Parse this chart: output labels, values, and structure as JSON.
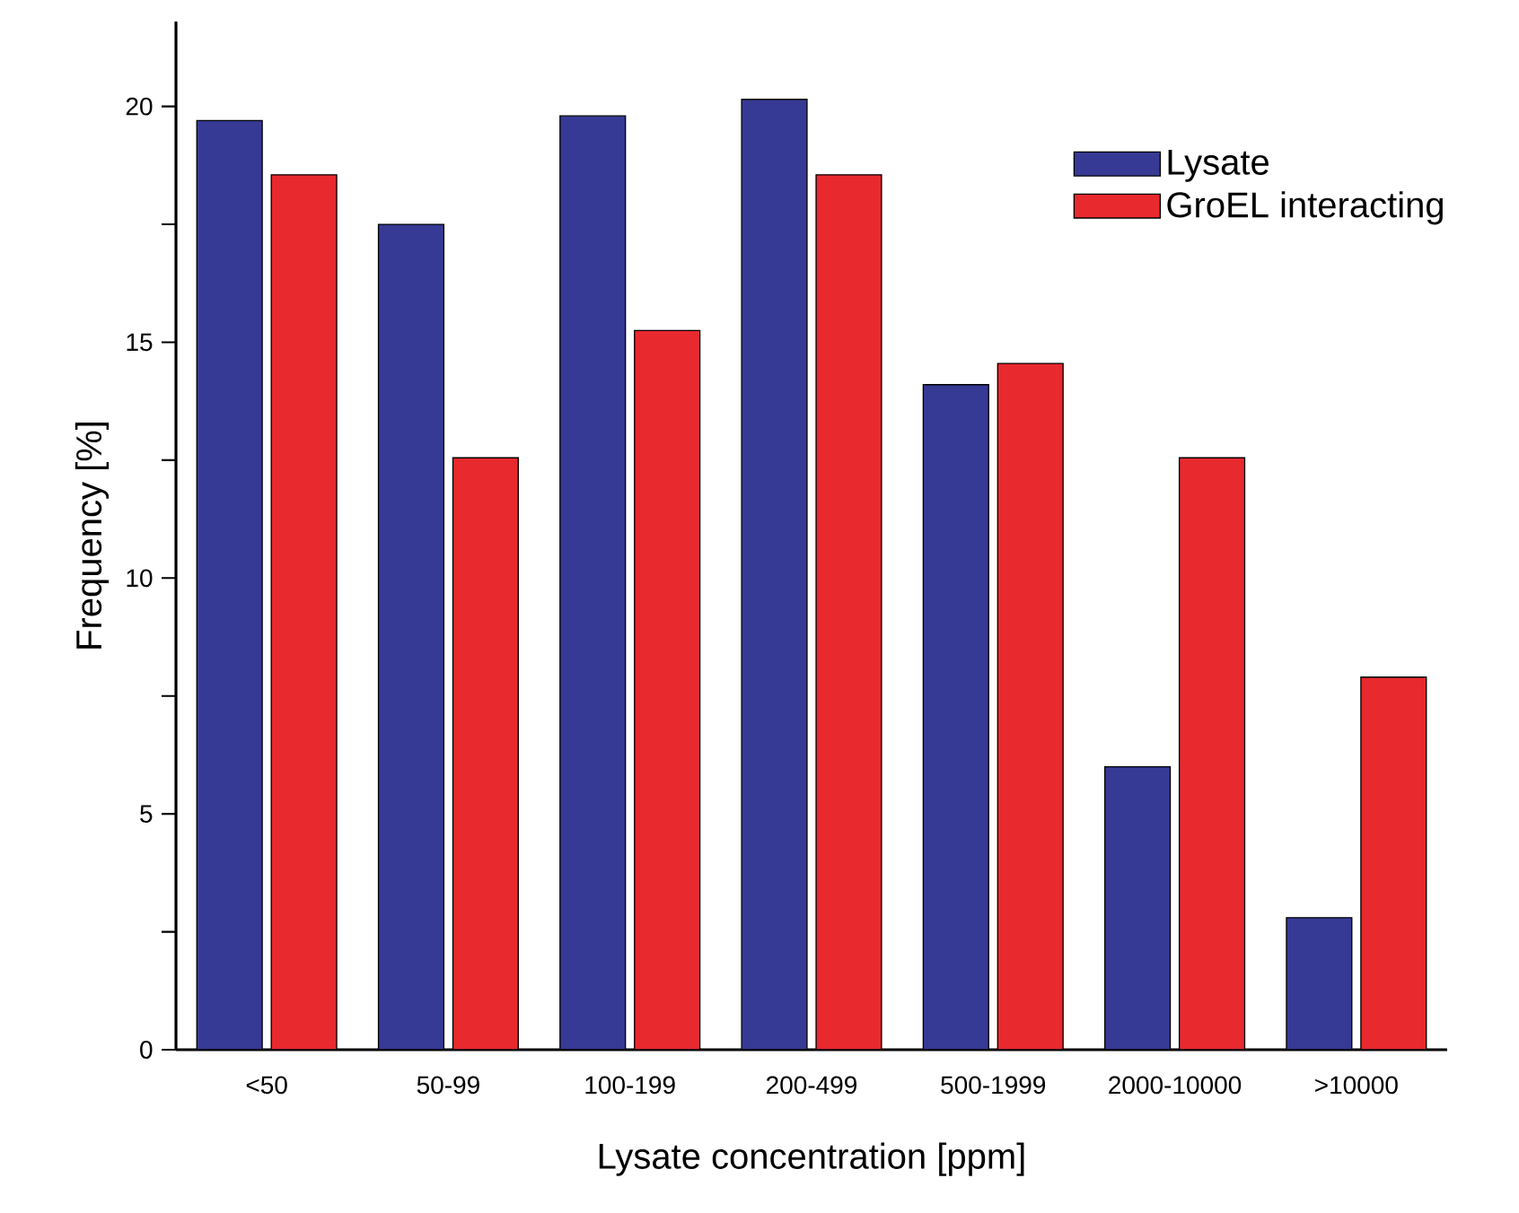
{
  "chart_data": {
    "type": "bar",
    "xlabel": "Lysate concentration [ppm]",
    "ylabel": "Frequency [%]",
    "categories": [
      "<50",
      "50-99",
      "100-199",
      "200-499",
      "500-1999",
      "2000-10000",
      ">10000"
    ],
    "series": [
      {
        "name": "Lysate",
        "color": "#363a94",
        "values": [
          19.7,
          17.5,
          19.8,
          20.15,
          14.1,
          6.0,
          2.8
        ]
      },
      {
        "name": "GroEL interacting",
        "color": "#e8292e",
        "values": [
          18.55,
          12.55,
          15.25,
          18.55,
          14.55,
          12.55,
          7.9
        ]
      }
    ],
    "ylim": [
      0,
      21.8
    ],
    "yticks": [
      0,
      {
        "value": 2.5,
        "label": null
      },
      5,
      {
        "value": 7.5,
        "label": null
      },
      10,
      {
        "value": 12.5,
        "label": null
      },
      15,
      {
        "value": 17.5,
        "label": null
      },
      20
    ],
    "legend": "top right",
    "grid": false
  }
}
